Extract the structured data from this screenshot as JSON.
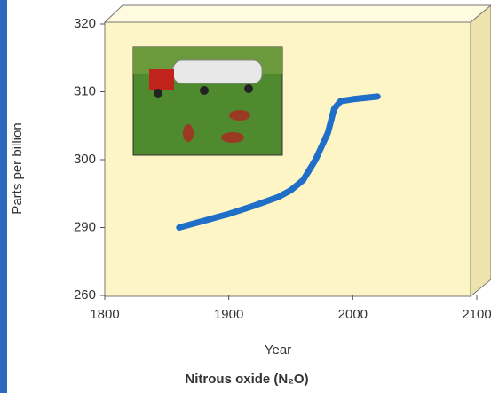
{
  "chart_data": {
    "type": "line",
    "title": "Nitrous oxide (N₂O)",
    "x_label": "Year",
    "y_label": "Parts per billion",
    "x": [
      1860,
      1880,
      1900,
      1920,
      1940,
      1950,
      1960,
      1970,
      1980,
      1985,
      1990,
      2000,
      2020
    ],
    "values": [
      290,
      291,
      292,
      293.2,
      294.5,
      295.5,
      297,
      300,
      304,
      307.5,
      308.6,
      308.9,
      309.3
    ],
    "color": "#1f6fc8",
    "xlim": [
      1800,
      2100
    ],
    "xticks": [
      1800,
      1900,
      2000,
      2100
    ],
    "ylim": [
      260,
      320
    ],
    "yticks": [
      260,
      290,
      300,
      310,
      320
    ]
  }
}
